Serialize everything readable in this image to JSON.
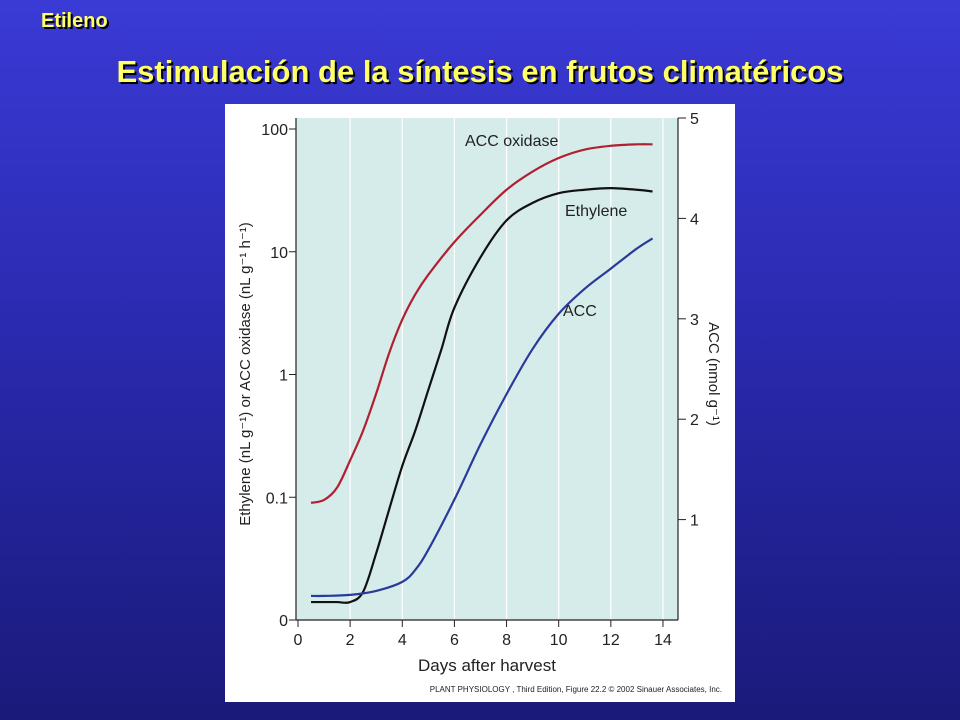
{
  "slide": {
    "section_label": "Etileno",
    "title": "Estimulación de la síntesis en frutos climatéricos"
  },
  "colors": {
    "accent_title": "#ffff66",
    "plot_background": "#d6ecea",
    "acc_oxidase": "#b02030",
    "ethylene": "#111111",
    "acc": "#2a3a9a"
  },
  "chart_data": {
    "type": "line",
    "xlabel": "Days after harvest",
    "ylabel_left": "Ethylene (nL g⁻¹) or ACC oxidase (nL g⁻¹ h⁻¹)",
    "ylabel_right": "ACC (nmol g⁻¹)",
    "xlim": [
      0,
      14.5
    ],
    "x_ticks": [
      "0",
      "2",
      "4",
      "6",
      "8",
      "10",
      "12",
      "14"
    ],
    "left_axis": {
      "scale": "log",
      "ticks": [
        "0",
        "0.1",
        "1",
        "10",
        "100"
      ]
    },
    "right_axis": {
      "scale": "linear",
      "ylim": [
        0,
        5
      ],
      "ticks": [
        "1",
        "2",
        "3",
        "4",
        "5"
      ]
    },
    "grid": "vertical",
    "credit": "PLANT PHYSIOLOGY , Third Edition, Figure 22.2  © 2002 Sinauer Associates, Inc.",
    "series": [
      {
        "name": "ACC oxidase",
        "axis": "left",
        "points": [
          [
            0.5,
            0.09
          ],
          [
            1,
            0.095
          ],
          [
            1.5,
            0.12
          ],
          [
            2,
            0.2
          ],
          [
            2.5,
            0.35
          ],
          [
            3,
            0.7
          ],
          [
            3.5,
            1.5
          ],
          [
            4,
            2.8
          ],
          [
            4.5,
            4.5
          ],
          [
            5,
            6.5
          ],
          [
            6,
            12
          ],
          [
            7,
            20
          ],
          [
            8,
            32
          ],
          [
            9,
            45
          ],
          [
            10,
            58
          ],
          [
            11,
            68
          ],
          [
            12,
            73
          ],
          [
            13,
            75
          ],
          [
            13.6,
            75
          ]
        ]
      },
      {
        "name": "Ethylene",
        "axis": "left",
        "points": [
          [
            0.5,
            0.014
          ],
          [
            1,
            0.014
          ],
          [
            1.5,
            0.014
          ],
          [
            2,
            0.014
          ],
          [
            2.5,
            0.017
          ],
          [
            3,
            0.035
          ],
          [
            3.5,
            0.08
          ],
          [
            4,
            0.18
          ],
          [
            4.5,
            0.35
          ],
          [
            5,
            0.75
          ],
          [
            5.5,
            1.6
          ],
          [
            6,
            3.5
          ],
          [
            7,
            9
          ],
          [
            8,
            18
          ],
          [
            9,
            25
          ],
          [
            10,
            30
          ],
          [
            11,
            32
          ],
          [
            12,
            33
          ],
          [
            13,
            32
          ],
          [
            13.6,
            31
          ]
        ]
      },
      {
        "name": "ACC",
        "axis": "right",
        "points": [
          [
            0.5,
            0.24
          ],
          [
            1,
            0.24
          ],
          [
            2,
            0.25
          ],
          [
            3,
            0.29
          ],
          [
            4,
            0.38
          ],
          [
            4.5,
            0.5
          ],
          [
            5,
            0.7
          ],
          [
            6,
            1.2
          ],
          [
            7,
            1.75
          ],
          [
            8,
            2.25
          ],
          [
            9,
            2.7
          ],
          [
            10,
            3.05
          ],
          [
            11,
            3.3
          ],
          [
            12,
            3.5
          ],
          [
            13,
            3.7
          ],
          [
            13.6,
            3.8
          ]
        ]
      }
    ]
  }
}
